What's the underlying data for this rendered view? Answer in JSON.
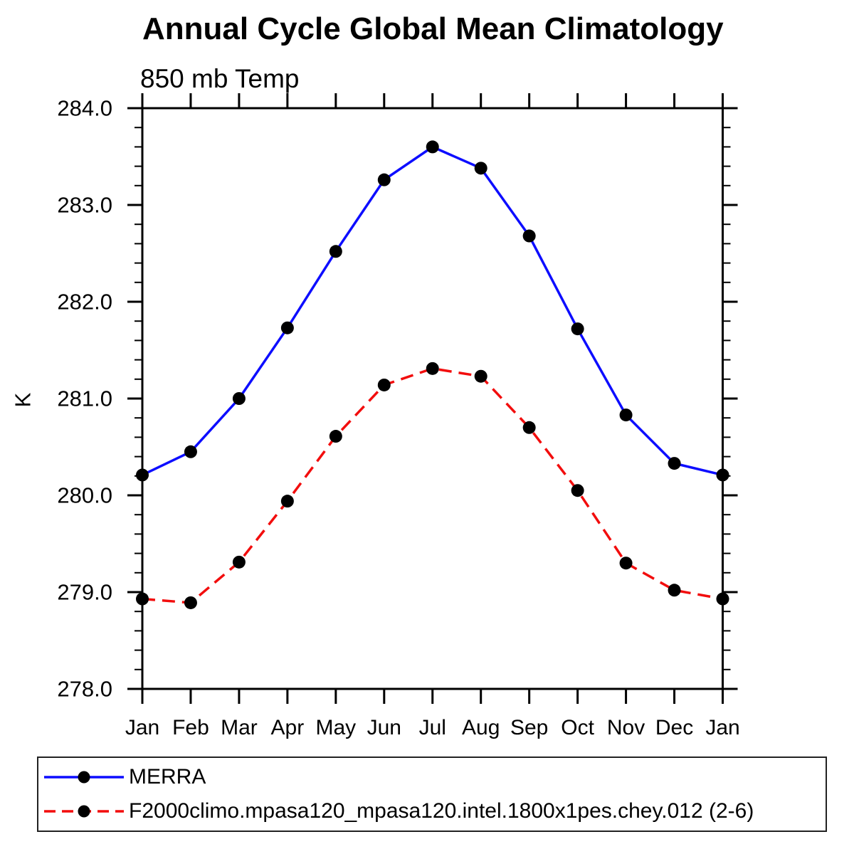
{
  "title": "Annual Cycle Global Mean Climatology",
  "subtitle": "850 mb Temp",
  "y_axis_label": "K",
  "colors": {
    "axis": "#000000",
    "background": "#ffffff",
    "merra_line": "#0d0dff",
    "model_line": "#f20d0d",
    "marker": "#000000"
  },
  "chart_data": {
    "type": "line",
    "categories": [
      "Jan",
      "Feb",
      "Mar",
      "Apr",
      "May",
      "Jun",
      "Jul",
      "Aug",
      "Sep",
      "Oct",
      "Nov",
      "Dec",
      "Jan"
    ],
    "series": [
      {
        "name": "MERRA",
        "color": "#0d0dff",
        "line_style": "solid",
        "marker_color": "#000000",
        "values": [
          280.21,
          280.45,
          281.0,
          281.73,
          282.52,
          283.26,
          283.6,
          283.38,
          282.68,
          281.72,
          280.83,
          280.33,
          280.21
        ]
      },
      {
        "name": "F2000climo.mpasa120_mpasa120.intel.1800x1pes.chey.012 (2-6)",
        "color": "#f20d0d",
        "line_style": "dashed",
        "marker_color": "#000000",
        "values": [
          278.93,
          278.89,
          279.31,
          279.94,
          280.61,
          281.14,
          281.31,
          281.23,
          280.7,
          280.05,
          279.3,
          279.02,
          278.93
        ]
      }
    ],
    "title": "Annual Cycle Global Mean Climatology",
    "subtitle": "850 mb Temp",
    "xlabel": "",
    "ylabel": "K",
    "ylim": [
      278.0,
      284.0
    ],
    "y_tick_step": 1.0,
    "y_minor_step": 0.2,
    "y_tick_format": "one_decimal",
    "grid": false,
    "legend_position": "bottom"
  }
}
